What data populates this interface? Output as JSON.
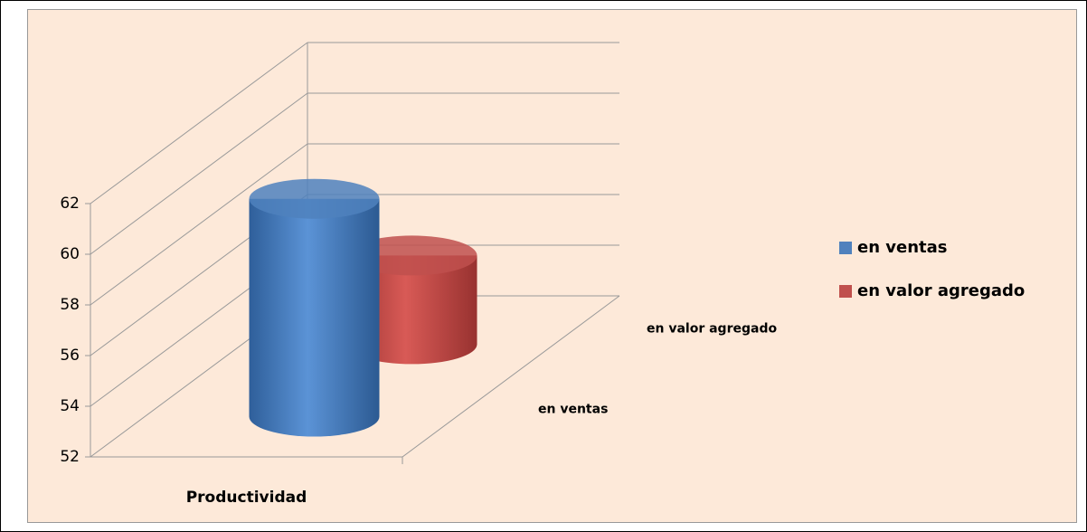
{
  "chart_data": {
    "type": "bar",
    "categories": [
      "Productividad"
    ],
    "series": [
      {
        "name": "en ventas",
        "color": "#4f81bd",
        "values": [
          60.6
        ]
      },
      {
        "name": "en valor agregado",
        "color": "#c0504d",
        "values": [
          55.5
        ]
      }
    ],
    "ylim": [
      52,
      62
    ],
    "yticks": [
      52,
      54,
      56,
      58,
      60,
      62
    ],
    "grid": true,
    "legend": "right"
  }
}
